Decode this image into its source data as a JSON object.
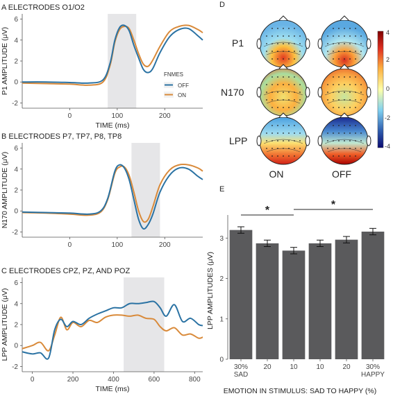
{
  "colors": {
    "off": "#2a72a3",
    "on": "#d98a3a",
    "shade": "#e6e6e8",
    "bar": "#5a5a5c"
  },
  "panelA": {
    "title": "A ELECTRODES O1/O2",
    "ylabel": "P1 AMPLITUDE (μV)",
    "xlabel": "TIME (ms)",
    "xticks": [
      "0",
      "100",
      "200"
    ],
    "yticks": [
      "-2",
      "0",
      "2",
      "4",
      "6"
    ],
    "legend_title": "FNMES",
    "legend_off": "OFF",
    "legend_on": "ON"
  },
  "panelB": {
    "title": "B ELECTRODES P7, TP7, P8, TP8",
    "ylabel": "N170 AMPLITUDE (μV)",
    "xticks": [
      "0",
      "100",
      "200"
    ],
    "yticks": [
      "-2",
      "0",
      "2",
      "4",
      "6"
    ]
  },
  "panelC": {
    "title": "C ELECTRODES CPZ, PZ, AND POZ",
    "ylabel": "LPP AMPLITUDE (μV)",
    "xlabel": "TIME (ms)",
    "xticks": [
      "0",
      "200",
      "400",
      "600",
      "800"
    ],
    "yticks": [
      "-2",
      "0",
      "2",
      "4",
      "6"
    ]
  },
  "panelD": {
    "label": "D",
    "rows": [
      "P1",
      "N170",
      "LPP"
    ],
    "cols": [
      "ON",
      "OFF"
    ],
    "colorbar_ticks": [
      "4",
      "2",
      "0",
      "-2",
      "-4"
    ]
  },
  "panelE": {
    "label": "E",
    "ylabel": "LPP AMPLITUDES (μV)",
    "xlabel": "EMOTION IN STIMULUS: SAD TO HAPPY (%)",
    "categories": [
      "30%",
      "20",
      "10",
      "10",
      "20",
      "30%"
    ],
    "sublabels": [
      "SAD",
      "",
      "",
      "",
      "",
      "HAPPY"
    ],
    "yticks": [
      "0",
      "1",
      "2",
      "3"
    ],
    "star1": "*",
    "star2": "*"
  },
  "chart_data": [
    {
      "type": "line",
      "title": "A ELECTRODES O1/O2",
      "xlabel": "TIME (ms)",
      "ylabel": "P1 AMPLITUDE (μV)",
      "xlim": [
        -100,
        280
      ],
      "ylim": [
        -2.5,
        6.5
      ],
      "shaded": [
        80,
        140
      ],
      "series": [
        {
          "name": "OFF",
          "x": [
            -100,
            -50,
            0,
            40,
            70,
            85,
            95,
            105,
            115,
            125,
            135,
            145,
            155,
            165,
            175,
            190,
            210,
            230,
            250,
            270,
            280
          ],
          "y": [
            0,
            0,
            -0.05,
            -0.1,
            0.2,
            1.8,
            4,
            5.2,
            5.4,
            4.9,
            3.5,
            2.3,
            1.2,
            0.9,
            1.3,
            2.8,
            4.3,
            5,
            5.1,
            4.4,
            4
          ]
        },
        {
          "name": "ON",
          "x": [
            -100,
            -50,
            0,
            40,
            70,
            85,
            95,
            105,
            115,
            125,
            135,
            145,
            155,
            165,
            175,
            190,
            210,
            230,
            250,
            270,
            280
          ],
          "y": [
            -0.1,
            -0.15,
            -0.2,
            -0.3,
            0,
            1.6,
            3.8,
            5,
            5.3,
            5.1,
            4,
            2.7,
            1.7,
            1.5,
            2.1,
            3.4,
            4.8,
            5.3,
            5.4,
            5,
            4.7
          ]
        }
      ]
    },
    {
      "type": "line",
      "title": "B ELECTRODES P7, TP7, P8, TP8",
      "ylabel": "N170 AMPLITUDE (μV)",
      "xlim": [
        -100,
        280
      ],
      "ylim": [
        -2.5,
        6.5
      ],
      "shaded": [
        130,
        190
      ],
      "series": [
        {
          "name": "OFF",
          "x": [
            -100,
            -50,
            0,
            40,
            65,
            80,
            95,
            105,
            115,
            125,
            135,
            145,
            155,
            165,
            175,
            190,
            210,
            230,
            250,
            270,
            280
          ],
          "y": [
            -0.1,
            -0.15,
            -0.2,
            -0.3,
            0,
            1.2,
            3.8,
            4.4,
            4.1,
            3,
            1.1,
            -0.8,
            -1.7,
            -1.3,
            -0.3,
            1.8,
            3.4,
            4.1,
            4,
            3.3,
            3
          ]
        },
        {
          "name": "ON",
          "x": [
            -100,
            -50,
            0,
            40,
            65,
            80,
            95,
            105,
            115,
            125,
            135,
            145,
            155,
            165,
            175,
            190,
            210,
            230,
            250,
            270,
            280
          ],
          "y": [
            -0.15,
            -0.2,
            -0.3,
            -0.4,
            -0.1,
            1.1,
            3.6,
            4.2,
            4.2,
            3.4,
            1.8,
            0,
            -1,
            -0.8,
            0.4,
            2.5,
            3.9,
            4.4,
            4.4,
            4.1,
            3.8
          ]
        }
      ]
    },
    {
      "type": "line",
      "title": "C ELECTRODES CPZ, PZ, AND POZ",
      "xlabel": "TIME (ms)",
      "ylabel": "LPP AMPLITUDE (μV)",
      "xlim": [
        -50,
        840
      ],
      "ylim": [
        -2.5,
        6.5
      ],
      "shaded": [
        450,
        650
      ],
      "series": [
        {
          "name": "OFF",
          "x": [
            -50,
            0,
            40,
            80,
            110,
            140,
            170,
            200,
            240,
            280,
            320,
            360,
            400,
            440,
            480,
            520,
            560,
            600,
            630,
            660,
            700,
            740,
            780,
            820,
            840
          ],
          "y": [
            -0.6,
            -0.8,
            -0.7,
            -1.2,
            1.5,
            2.5,
            1.8,
            2.3,
            2,
            2.6,
            3,
            3.3,
            3.6,
            3.6,
            4,
            4,
            4.1,
            4.2,
            3.6,
            2.8,
            3.9,
            2.3,
            2.6,
            2,
            1.9
          ]
        },
        {
          "name": "ON",
          "x": [
            -50,
            0,
            40,
            80,
            110,
            140,
            170,
            200,
            240,
            280,
            320,
            360,
            400,
            440,
            480,
            520,
            560,
            600,
            630,
            660,
            700,
            740,
            780,
            820,
            840
          ],
          "y": [
            -0.3,
            0,
            0.3,
            -0.5,
            1,
            2.7,
            1.5,
            2.2,
            1.8,
            2.4,
            2.2,
            2.7,
            2.9,
            2.9,
            2.8,
            2.9,
            2.6,
            2.5,
            1.8,
            1.4,
            1.7,
            1,
            1.1,
            0.7,
            0.8
          ]
        }
      ]
    },
    {
      "type": "bar",
      "xlabel": "EMOTION IN STIMULUS: SAD TO HAPPY (%)",
      "ylabel": "LPP AMPLITUDES (μV)",
      "categories": [
        "30% SAD",
        "20",
        "10",
        "10",
        "20",
        "30% HAPPY"
      ],
      "values": [
        3.2,
        2.87,
        2.69,
        2.87,
        2.96,
        3.16
      ],
      "errors": [
        0.08,
        0.08,
        0.08,
        0.08,
        0.08,
        0.08
      ],
      "ylim": [
        0,
        3.4
      ]
    }
  ]
}
